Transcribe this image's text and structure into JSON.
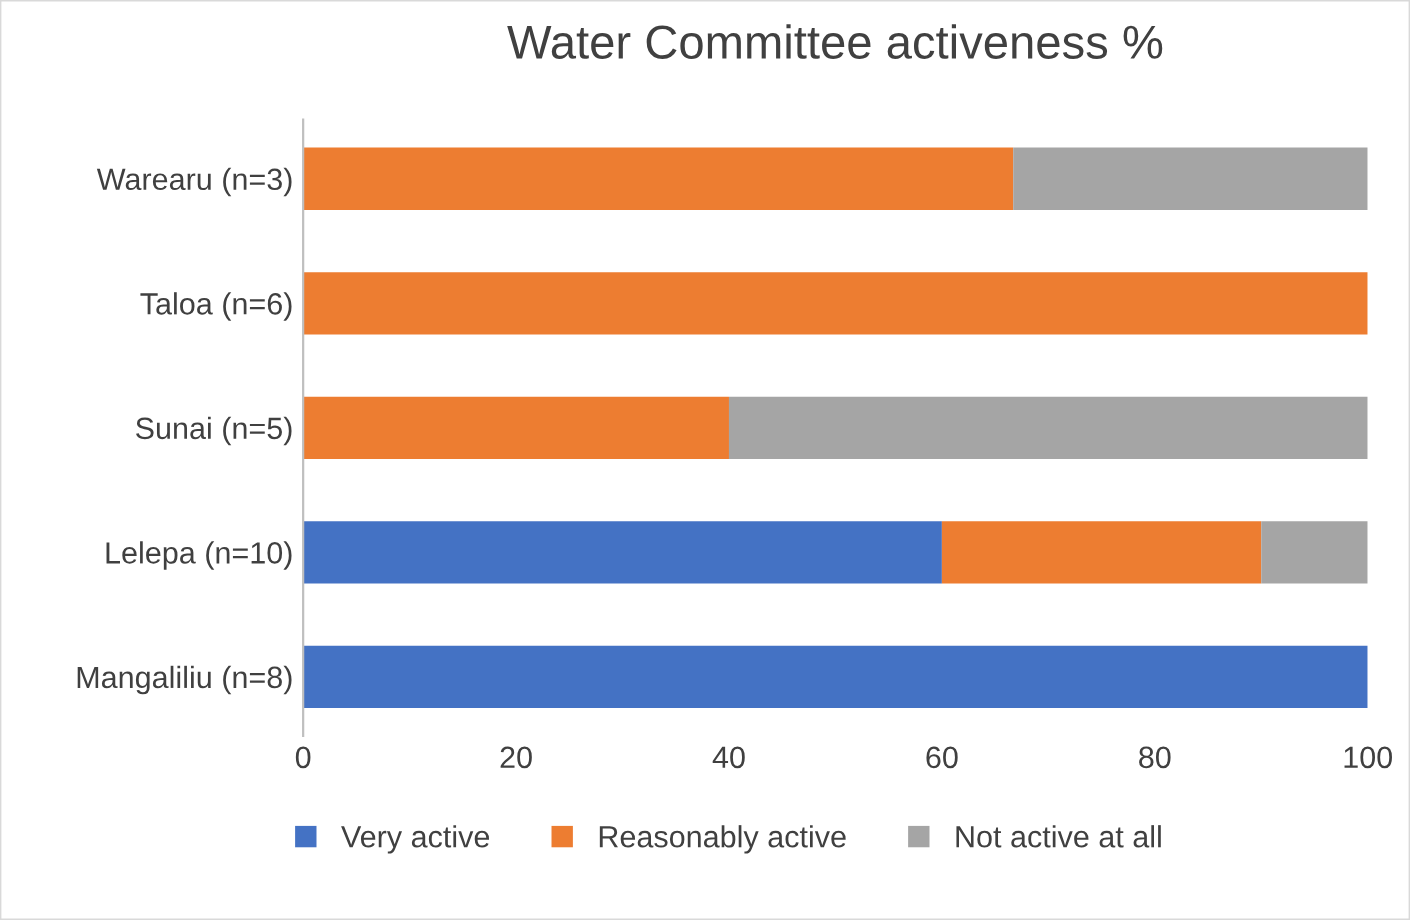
{
  "chart_data": {
    "type": "bar",
    "orientation": "horizontal",
    "stacked": true,
    "title": "Water Committee activeness %",
    "categories": [
      "Warearu (n=3)",
      "Taloa (n=6)",
      "Sunai (n=5)",
      "Lelepa (n=10)",
      "Mangaliliu (n=8)"
    ],
    "series": [
      {
        "name": "Very active",
        "color": "#4472c4",
        "values": [
          0,
          0,
          0,
          60,
          100
        ]
      },
      {
        "name": "Reasonably active",
        "color": "#ed7d31",
        "values": [
          66.7,
          100,
          40,
          30,
          0
        ]
      },
      {
        "name": "Not active at all",
        "color": "#a5a5a5",
        "values": [
          33.3,
          0,
          60,
          10,
          0
        ]
      }
    ],
    "xlim": [
      0,
      100
    ],
    "xticks": [
      0,
      20,
      40,
      60,
      80,
      100
    ],
    "grid": false,
    "legend": "bottom"
  }
}
